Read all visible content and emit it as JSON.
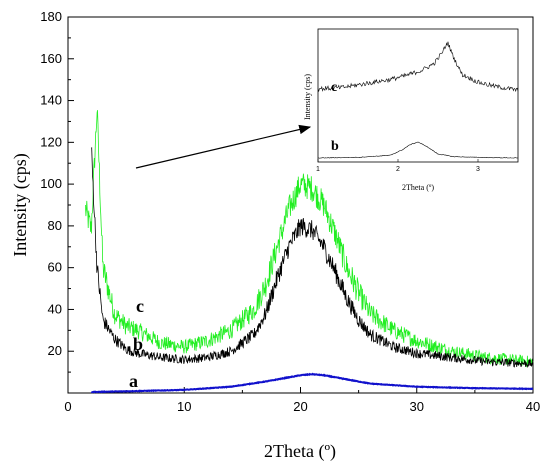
{
  "chart_data": {
    "type": "line",
    "xlabel": "2Theta (º)",
    "ylabel": "Intensity (cps)",
    "xlim": [
      0,
      40
    ],
    "ylim": [
      0,
      180
    ],
    "xticks": [
      0,
      10,
      20,
      30,
      40
    ],
    "yticks": [
      20,
      40,
      60,
      80,
      100,
      120,
      140,
      160,
      180
    ],
    "grid": false,
    "series": [
      {
        "name": "a",
        "color": "#1111cc",
        "x": [
          2,
          5,
          10,
          14,
          17,
          19,
          20,
          21,
          22,
          24,
          26,
          30,
          35,
          40
        ],
        "y": [
          0.5,
          0.8,
          1.5,
          3,
          5.5,
          7.5,
          8.5,
          9,
          8.5,
          6.5,
          4.5,
          3,
          2.3,
          2
        ]
      },
      {
        "name": "b",
        "color": "#000000",
        "x": [
          2,
          2.5,
          3,
          4,
          5,
          6,
          8,
          10,
          12,
          14,
          16,
          17,
          18,
          19,
          20,
          21,
          22,
          23,
          24,
          25,
          26,
          28,
          30,
          33,
          36,
          40
        ],
        "y": [
          118,
          60,
          35,
          26,
          21,
          19,
          17,
          16,
          17,
          20,
          28,
          38,
          55,
          70,
          80,
          78,
          70,
          58,
          45,
          35,
          28,
          22,
          19,
          17,
          15,
          14
        ]
      },
      {
        "name": "c",
        "color": "#22ee22",
        "x": [
          1.5,
          2,
          2.5,
          3,
          4,
          5,
          6,
          8,
          10,
          12,
          14,
          16,
          17,
          18,
          19,
          20,
          21,
          22,
          23,
          24,
          25,
          26,
          28,
          30,
          33,
          36,
          40
        ],
        "y": [
          88,
          78,
          136,
          60,
          38,
          32,
          30,
          24,
          22,
          25,
          30,
          40,
          52,
          70,
          88,
          100,
          98,
          90,
          76,
          60,
          48,
          38,
          30,
          25,
          20,
          17,
          15
        ]
      }
    ],
    "inset": {
      "xlabel": "2Theta (º)",
      "ylabel": "Intensity (cps)",
      "xticks": [
        1,
        2,
        3
      ],
      "xlim": [
        1,
        3.5
      ],
      "series": [
        {
          "name": "c",
          "color": "#000000",
          "x": [
            1,
            1.3,
            1.6,
            1.9,
            2.1,
            2.3,
            2.45,
            2.55,
            2.62,
            2.7,
            2.8,
            3.0,
            3.2,
            3.5
          ],
          "y": [
            0.55,
            0.56,
            0.59,
            0.62,
            0.65,
            0.69,
            0.74,
            0.82,
            0.9,
            0.78,
            0.66,
            0.6,
            0.57,
            0.54
          ]
        },
        {
          "name": "b",
          "color": "#000000",
          "x": [
            1,
            1.5,
            1.9,
            2.05,
            2.15,
            2.25,
            2.35,
            2.5,
            2.7,
            3.0,
            3.5
          ],
          "y": [
            0.03,
            0.035,
            0.05,
            0.09,
            0.13,
            0.15,
            0.12,
            0.06,
            0.04,
            0.035,
            0.03
          ]
        }
      ]
    }
  }
}
